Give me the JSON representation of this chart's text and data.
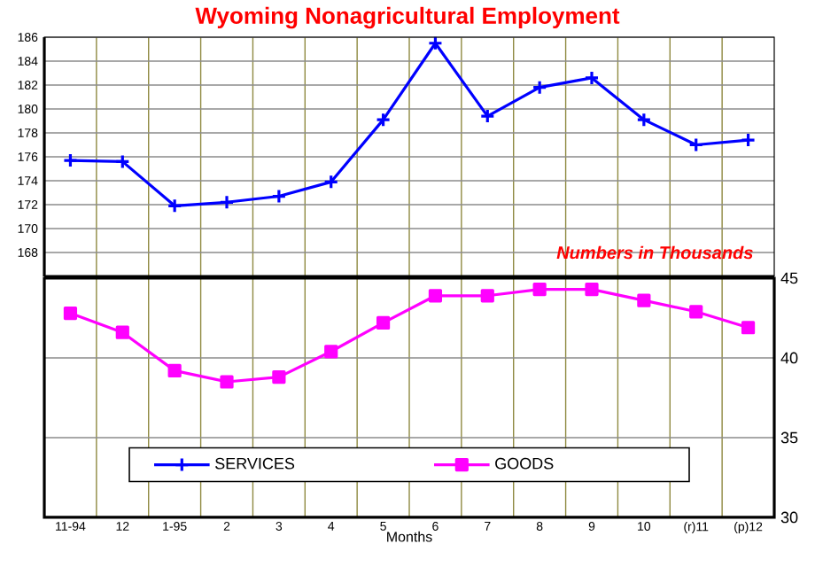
{
  "chart_data": [
    {
      "type": "line",
      "title": "Wyoming Nonagricultural Employment",
      "annotations": [
        "Numbers in Thousands"
      ],
      "categories": [
        null,
        null,
        null,
        null,
        null,
        null,
        null,
        null,
        null,
        null,
        null,
        null,
        null,
        null
      ],
      "series": [
        {
          "name": "SERVICES",
          "color": "#0000ff",
          "marker": "cross",
          "values": [
            175.7,
            175.6,
            171.9,
            172.2,
            172.7,
            173.9,
            179.1,
            185.5,
            179.4,
            181.8,
            182.6,
            179.1,
            177.0,
            177.4
          ]
        }
      ],
      "ylim": [
        166,
        186
      ],
      "yticks": [
        168,
        170,
        172,
        174,
        176,
        178,
        180,
        182,
        184,
        186
      ],
      "grid": true,
      "tick_labels": "y"
    },
    {
      "type": "line",
      "xlabel": "Months",
      "legend": "bottom",
      "categories": [
        "11-94",
        "12",
        "1-95",
        "2",
        "3",
        "4",
        "5",
        "6",
        "7",
        "8",
        "9",
        "10",
        "(r)11",
        "(p)12"
      ],
      "series": [
        {
          "name": "GOODS",
          "color": "#ff00ff",
          "marker": "square",
          "values": [
            42.8,
            41.6,
            39.2,
            38.5,
            38.8,
            40.4,
            42.2,
            43.9,
            43.9,
            44.3,
            44.3,
            43.6,
            42.9,
            41.9
          ]
        }
      ],
      "ylim": [
        30,
        45
      ],
      "yticks": [
        30,
        35,
        40,
        45
      ],
      "grid": true
    }
  ]
}
